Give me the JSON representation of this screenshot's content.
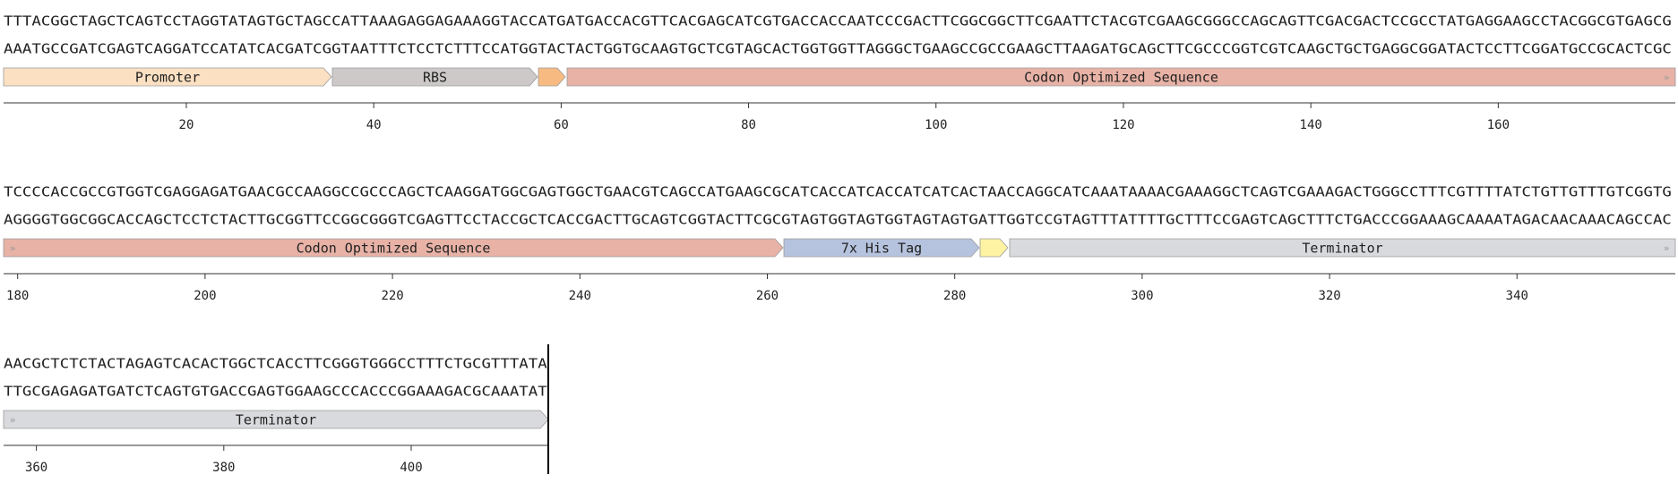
{
  "rows": [
    {
      "top": "TTTACGGCTAGCTCAGTCCTAGGTATAGTGCTAGCCATTAAAGAGGAGAAAGGTACCATGATGACCACGTTCACGAGCATCGTGACCACCAATCCCGACTTCGGCGGCTTCGAATTCTACGTCGAAGCGGGCCAGCAGTTCGACGACTCCGCCTATGAGGAAGCCTACGGCGTGAGCG",
      "bottom": "AAATGCCGATCGAGTCAGGATCCATATCACGATCGGTAATTTCTCCTCTTTCCATGGTACTACTGGTGCAAGTGCTCGTAGCACTGGTGGTTAGGGCTGAAGCCGCCGAAGCTTAAGATGCAGCTTCGCCCGGTCGTCAAGCTGCTGAGGCGGATACTCCTTCGGATGCCGCACTCGC",
      "features": [
        {
          "label": "Promoter",
          "color": "#fbe0c2"
        },
        {
          "label": "RBS",
          "color": "#cdc9c9"
        },
        {
          "color": "#f7bb82"
        },
        {
          "label": "Codon Optimized Sequence",
          "color": "#e8b2a6"
        }
      ],
      "ticks": [
        20,
        40,
        60,
        80,
        100,
        120,
        140,
        160
      ]
    },
    {
      "top": "TCCCCACCGCCGTGGTCGAGGAGATGAACGCCAAGGCCGCCCAGCTCAAGGATGGCGAGTGGCTGAACGTCAGCCATGAAGCGCATCACCATCACCATCATCACTAACCAGGCATCAAATAAAACGAAAGGCTCAGTCGAAAGACTGGGCCTTTCGTTTTATCTGTTGTTTGTCGGTG",
      "bottom": "AGGGGTGGCGGCACCAGCTCCTCTACTTGCGGTTCCGGCGGGTCGAGTTCCTACCGCTCACCGACTTGCAGTCGGTACTTCGCGTAGTGGTAGTGGTAGTAGTGATTGGTCCGTAGTTTATTTTGCTTTCCGAGTCAGCTTTCTGACCCGGAAAGCAAAATAGACAACAAACAGCCAC",
      "features": [
        {
          "label": "Codon Optimized Sequence",
          "color": "#e8b2a6"
        },
        {
          "label": "7x His Tag",
          "color": "#b6c3de"
        },
        {
          "color": "#fdf3a2"
        },
        {
          "label": "Terminator",
          "color": "#d9dadd"
        }
      ],
      "ticks": [
        180,
        200,
        220,
        240,
        260,
        280,
        300,
        320,
        340
      ]
    },
    {
      "top": "AACGCTCTCTACTAGAGTCACACTGGCTCACCTTCGGGTGGGCCTTTCTGCGTTTATA",
      "bottom": "TTGCGAGAGATGATCTCAGTGTGACCGAGTGGAAGCCCACCCGGAAAGACGCAAATAT",
      "features": [
        {
          "label": "Terminator",
          "color": "#d9dadd"
        }
      ],
      "ticks": [
        360,
        380,
        400
      ]
    }
  ]
}
